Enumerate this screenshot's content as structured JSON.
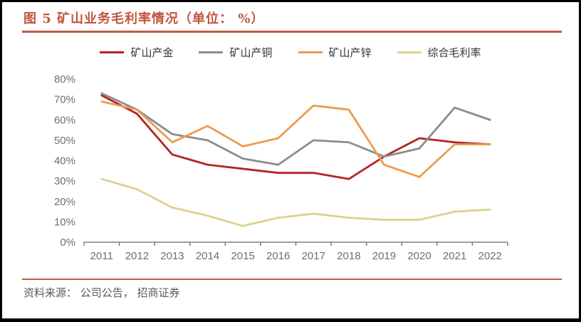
{
  "page": {
    "title": "图 5 矿山业务毛利率情况（单位： %）",
    "source_note": "资料来源： 公司公告， 招商证券"
  },
  "colors": {
    "title": "#C0543E",
    "rule": "#C05A43",
    "axis_line": "#808080",
    "axis_text": "#6F6F6F",
    "legend_text": "#333333",
    "series_gold": "#B12624",
    "series_copper": "#8C8C8C",
    "series_zinc": "#EC9B50",
    "series_composite": "#DCD28E"
  },
  "chart_data": {
    "type": "line",
    "title": "图 5 矿山业务毛利率情况（单位： %）",
    "categories": [
      "2011",
      "2012",
      "2013",
      "2014",
      "2015",
      "2016",
      "2017",
      "2018",
      "2019",
      "2020",
      "2021",
      "2022"
    ],
    "series": [
      {
        "name": "矿山产金",
        "color": "#B12624",
        "values": [
          72,
          63,
          43,
          38,
          36,
          34,
          34,
          31,
          42,
          51,
          49,
          48
        ]
      },
      {
        "name": "矿山产铜",
        "color": "#8C8C8C",
        "values": [
          73,
          65,
          53,
          50,
          41,
          38,
          50,
          49,
          42,
          46,
          66,
          60
        ]
      },
      {
        "name": "矿山产锌",
        "color": "#EC9B50",
        "values": [
          69,
          65,
          49,
          57,
          47,
          51,
          67,
          65,
          38,
          32,
          48,
          48
        ]
      },
      {
        "name": "综合毛利率",
        "color": "#DCD28E",
        "values": [
          31,
          26,
          17,
          13,
          8,
          12,
          14,
          12,
          11,
          11,
          15,
          16
        ]
      }
    ],
    "ylim": [
      0,
      80
    ],
    "ytick_step": 10,
    "ytick_labels": [
      "0%",
      "10%",
      "20%",
      "30%",
      "40%",
      "50%",
      "60%",
      "70%",
      "80%"
    ],
    "xlabel": "",
    "ylabel": "",
    "grid": false,
    "legend_position": "top"
  }
}
